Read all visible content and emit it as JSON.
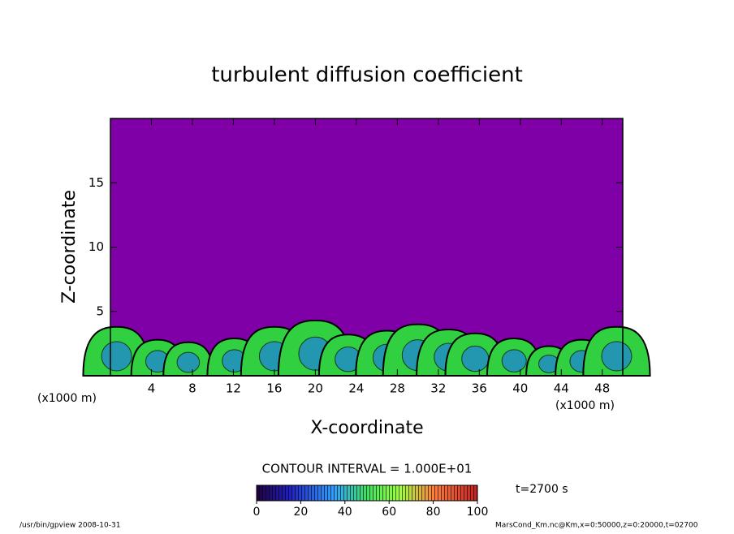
{
  "chart_data": {
    "type": "contour",
    "title": "turbulent diffusion coefficient",
    "xlabel": "X-coordinate",
    "ylabel": "Z-coordinate",
    "x_unit": "(x1000 m)",
    "xlim": [
      0,
      50
    ],
    "ylim": [
      0,
      20
    ],
    "xticks": [
      4,
      8,
      12,
      16,
      20,
      24,
      28,
      32,
      36,
      40,
      44,
      48
    ],
    "yticks": [
      5,
      10,
      15
    ],
    "background_color": "#8000a8",
    "plumes": {
      "x": [
        0.6,
        4.6,
        7.6,
        12.1,
        16.0,
        20.0,
        23.2,
        27.0,
        30.0,
        33.0,
        35.6,
        39.4,
        42.8,
        46.0,
        49.4
      ],
      "top": [
        3.8,
        2.8,
        2.6,
        2.9,
        3.8,
        4.3,
        3.2,
        3.5,
        4.0,
        3.6,
        3.3,
        2.9,
        2.3,
        2.8,
        3.8
      ]
    },
    "contour_interval_label": "CONTOUR INTERVAL = 1.000E+01",
    "colorbar": {
      "lim": [
        0,
        100
      ],
      "ticks": [
        0,
        20,
        40,
        60,
        80,
        100
      ]
    },
    "time_label": "t=2700 s",
    "footer_left": "/usr/bin/gpview   2008-10-31",
    "footer_right": "MarsCond_Km.nc@Km,x=0:50000,z=0:20000,t=02700"
  }
}
